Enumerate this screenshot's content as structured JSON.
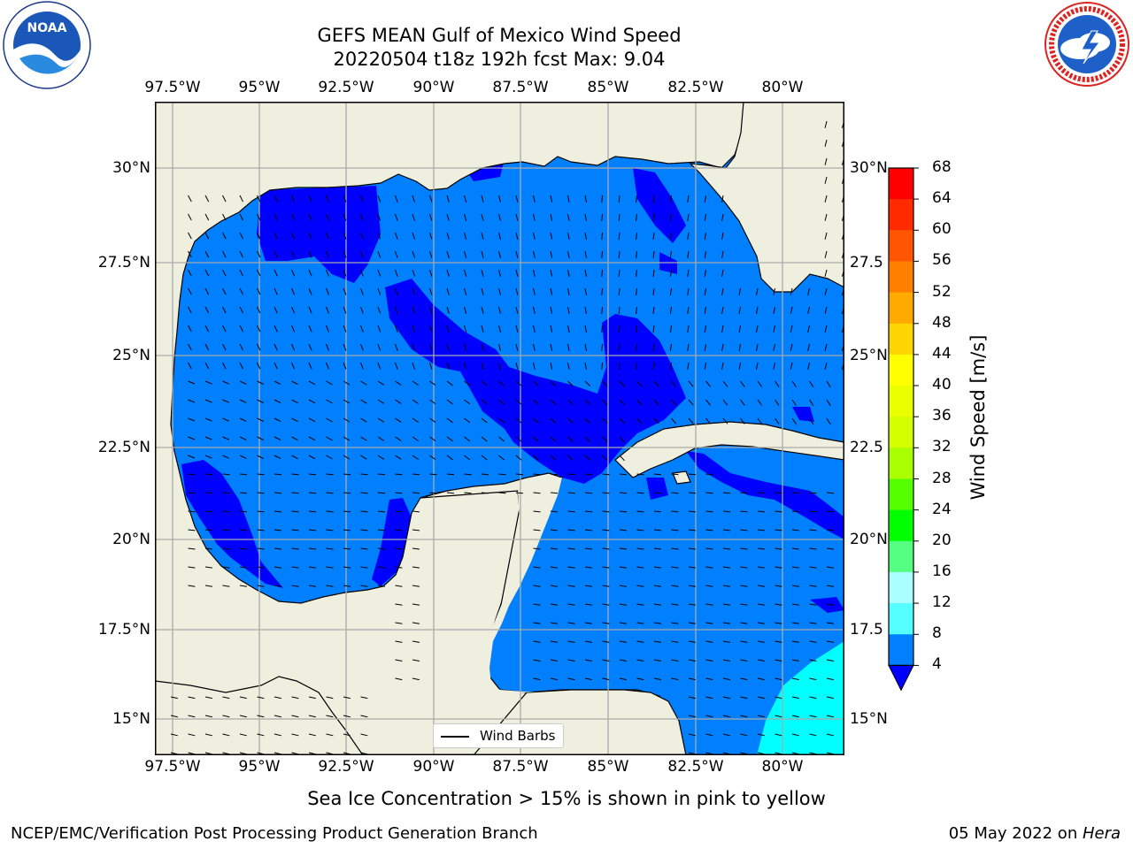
{
  "title_line1": "GEFS MEAN Gulf of Mexico Wind Speed",
  "title_line2": "20220504 t18z 192h fcst   Max: 9.04",
  "lon_ticks": [
    "97.5°W",
    "95°W",
    "92.5°W",
    "90°W",
    "87.5°W",
    "85°W",
    "82.5°W",
    "80°W"
  ],
  "lat_ticks_left": [
    "30°N",
    "27.5°N",
    "25°N",
    "22.5°N",
    "20°N",
    "17.5°N",
    "15°N"
  ],
  "lat_ticks_right": [
    "30°N",
    "27.5",
    "25°N",
    "22.5",
    "20°N",
    "17.5",
    "15°N"
  ],
  "legend_label": "Wind Barbs",
  "colorbar": {
    "title": "Wind Speed [m/s]",
    "labels": [
      "68",
      "64",
      "60",
      "56",
      "52",
      "48",
      "44",
      "40",
      "36",
      "32",
      "28",
      "24",
      "20",
      "16",
      "12",
      "8",
      "4"
    ],
    "colors": [
      "#ff0000",
      "#ff2a00",
      "#ff5500",
      "#ff8000",
      "#ffaa00",
      "#ffd500",
      "#ffff00",
      "#eaff00",
      "#d4ff00",
      "#aaff00",
      "#55ff00",
      "#00ff00",
      "#55ff7f",
      "#aaffff",
      "#55ffff",
      "#00ffff",
      "#0080ff"
    ],
    "under_color": "#0000ff"
  },
  "land_color": "#efefdf",
  "ocean_light": "#0080ff",
  "ocean_dark": "#0000ff",
  "ocean_cyan": "#00ffff",
  "note": "Sea Ice Concentration > 15% is shown in pink to yellow",
  "footer_left": "NCEP/EMC/Verification Post Processing Product Generation Branch",
  "footer_right_date": "05 May 2022 on ",
  "footer_right_machine": "Hera",
  "logo_left": "noaa-logo",
  "logo_right": "nws-logo",
  "noaa_text": "NOAA"
}
